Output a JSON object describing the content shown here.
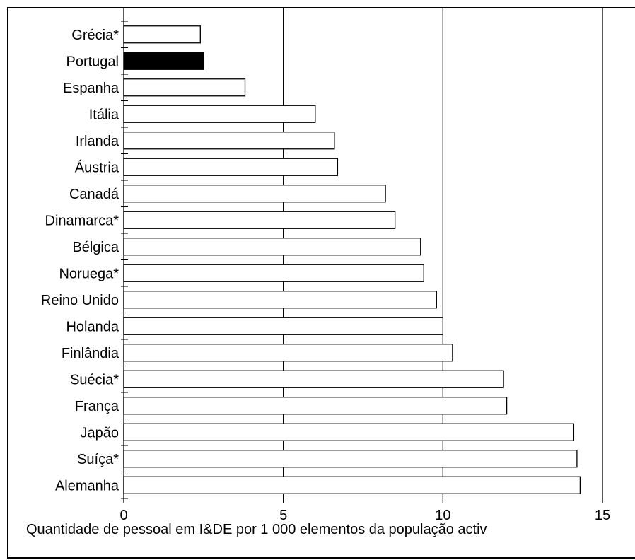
{
  "chart_data": {
    "type": "bar",
    "orientation": "horizontal",
    "categories": [
      "Grécia*",
      "Portugal",
      "Espanha",
      "Itália",
      "Irlanda",
      "Áustria",
      "Canadá",
      "Dinamarca*",
      "Bélgica",
      "Noruega*",
      "Reino Unido",
      "Holanda",
      "Finlândia",
      "Suécia*",
      "França",
      "Japão",
      "Suíça*",
      "Alemanha"
    ],
    "values": [
      2.4,
      2.5,
      3.8,
      6.0,
      6.6,
      6.7,
      8.2,
      8.5,
      9.3,
      9.4,
      9.8,
      10.0,
      10.3,
      11.9,
      12.0,
      14.1,
      14.2,
      14.3
    ],
    "highlight": [
      "Portugal"
    ],
    "bar_color": "#ffffff",
    "highlight_color": "#000000",
    "xlabel": "Quantidade de pessoal em I&DE por 1 000 elementos da população activ",
    "xlim": [
      0,
      15
    ],
    "xticks": [
      0,
      5,
      10,
      15
    ],
    "grid": "vertical lines at 5, 10, 15"
  }
}
